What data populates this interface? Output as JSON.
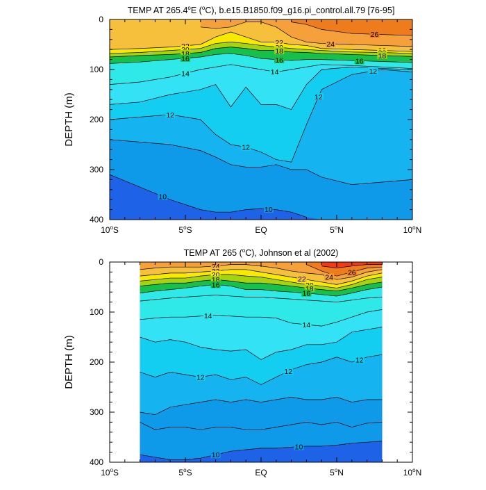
{
  "chart_data": [
    {
      "type": "contour",
      "title": "TEMP AT 265.4°E (°C), b.e15.B1850.f09_g16.pi_control.all.79 [76-95]",
      "title_parts": [
        "TEMP AT 265.4",
        "o",
        "E (",
        "o",
        "C), b.e15.B1850.f09_g16.pi_control.all.79 [76-95]"
      ],
      "ylabel": "DEPTH (m)",
      "xlim": [
        -10,
        10
      ],
      "ylim": [
        400,
        0
      ],
      "x_tick_labels": [
        "10°S",
        "5°S",
        "EQ",
        "5°N",
        "10°N"
      ],
      "y_tick_labels": [
        "0",
        "100",
        "200",
        "300",
        "400"
      ],
      "contour_levels": [
        10,
        11,
        12,
        13,
        14,
        15,
        16,
        17,
        18,
        19,
        20,
        21,
        22,
        23,
        24,
        25,
        26
      ],
      "lat": [
        -10,
        -8,
        -6,
        -4,
        -3,
        -2,
        -1,
        0,
        1,
        2,
        3,
        4,
        6,
        8,
        10
      ],
      "isotherm_depths": [
        {
          "t": 26,
          "depth": [
            null,
            null,
            null,
            null,
            null,
            null,
            null,
            null,
            null,
            5,
            10,
            20,
            28,
            30,
            32
          ]
        },
        {
          "t": 24,
          "depth": [
            null,
            null,
            null,
            15,
            18,
            15,
            5,
            5,
            15,
            35,
            45,
            48,
            50,
            52,
            54
          ]
        },
        {
          "t": 22,
          "depth": [
            60,
            58,
            55,
            50,
            35,
            25,
            35,
            45,
            45,
            50,
            52,
            58,
            60,
            62,
            64
          ]
        },
        {
          "t": 20,
          "depth": [
            68,
            66,
            62,
            58,
            48,
            45,
            48,
            52,
            55,
            58,
            60,
            62,
            65,
            66,
            68
          ]
        },
        {
          "t": 18,
          "depth": [
            75,
            72,
            70,
            66,
            58,
            55,
            58,
            62,
            62,
            65,
            66,
            68,
            70,
            72,
            74
          ]
        },
        {
          "t": 16,
          "depth": [
            88,
            85,
            80,
            75,
            70,
            68,
            72,
            78,
            80,
            82,
            80,
            80,
            82,
            84,
            86
          ]
        },
        {
          "t": 14,
          "depth": [
            130,
            125,
            115,
            100,
            95,
            90,
            95,
            100,
            105,
            100,
            95,
            90,
            92,
            95,
            98
          ]
        },
        {
          "t": 13,
          "depth": [
            170,
            165,
            150,
            140,
            130,
            175,
            135,
            170,
            170,
            180,
            130,
            100,
            95,
            98,
            100
          ]
        },
        {
          "t": 12,
          "depth": [
            200,
            195,
            190,
            200,
            230,
            250,
            255,
            265,
            280,
            285,
            210,
            140,
            110,
            100,
            105
          ]
        },
        {
          "t": 11,
          "depth": [
            240,
            245,
            250,
            262,
            275,
            290,
            295,
            295,
            290,
            300,
            300,
            315,
            330,
            325,
            320
          ]
        },
        {
          "t": 10,
          "depth": [
            310,
            335,
            360,
            380,
            385,
            385,
            380,
            378,
            380,
            385,
            395,
            400,
            400,
            400,
            400
          ]
        }
      ],
      "contour_labels": [
        "22",
        "20",
        "18",
        "16",
        "14",
        "12",
        "12",
        "12",
        "10",
        "10",
        "22",
        "20",
        "18",
        "16",
        "24",
        "26",
        "22",
        "20",
        "18",
        "16",
        "14",
        "12"
      ]
    },
    {
      "type": "contour",
      "title": "TEMP AT 265 (°C), Johnson et al (2002)",
      "title_parts": [
        "TEMP AT 265 (",
        "o",
        "C), Johnson et al (2002)"
      ],
      "ylabel": "DEPTH (m)",
      "xlim": [
        -10,
        10
      ],
      "ylim": [
        400,
        0
      ],
      "data_xrange": [
        -8,
        8
      ],
      "x_tick_labels": [
        "10°S",
        "5°S",
        "EQ",
        "5°N",
        "10°N"
      ],
      "y_tick_labels": [
        "0",
        "100",
        "200",
        "300",
        "400"
      ],
      "contour_levels": [
        10,
        11,
        12,
        13,
        14,
        15,
        16,
        17,
        18,
        19,
        20,
        21,
        22,
        23,
        24,
        25,
        26,
        27
      ],
      "lat": [
        -8,
        -7,
        -6,
        -5,
        -4,
        -3,
        -2,
        -1,
        0,
        1,
        2,
        3,
        4,
        5,
        6,
        7,
        8
      ],
      "isotherm_depths": [
        {
          "t": 27,
          "depth": [
            null,
            null,
            null,
            null,
            null,
            null,
            null,
            null,
            null,
            null,
            null,
            null,
            8,
            12,
            8,
            5,
            5
          ]
        },
        {
          "t": 26,
          "depth": [
            null,
            null,
            null,
            null,
            null,
            null,
            null,
            null,
            null,
            null,
            null,
            5,
            18,
            28,
            20,
            12,
            10
          ]
        },
        {
          "t": 24,
          "depth": [
            15,
            12,
            10,
            10,
            10,
            8,
            5,
            5,
            8,
            12,
            18,
            22,
            25,
            35,
            30,
            20,
            15
          ]
        },
        {
          "t": 22,
          "depth": [
            28,
            25,
            22,
            22,
            20,
            18,
            15,
            15,
            20,
            25,
            30,
            35,
            40,
            45,
            38,
            28,
            22
          ]
        },
        {
          "t": 20,
          "depth": [
            38,
            35,
            32,
            32,
            28,
            25,
            25,
            28,
            30,
            35,
            40,
            45,
            48,
            52,
            45,
            35,
            30
          ]
        },
        {
          "t": 18,
          "depth": [
            48,
            45,
            42,
            42,
            38,
            35,
            38,
            42,
            42,
            45,
            48,
            52,
            55,
            58,
            52,
            45,
            40
          ]
        },
        {
          "t": 16,
          "depth": [
            62,
            58,
            55,
            52,
            48,
            45,
            48,
            55,
            55,
            58,
            60,
            62,
            65,
            68,
            62,
            55,
            50
          ]
        },
        {
          "t": 15,
          "depth": [
            78,
            75,
            72,
            70,
            68,
            66,
            68,
            70,
            70,
            72,
            74,
            76,
            78,
            80,
            76,
            72,
            70
          ]
        },
        {
          "t": 14,
          "depth": [
            115,
            112,
            110,
            110,
            108,
            106,
            108,
            110,
            110,
            112,
            122,
            125,
            128,
            120,
            110,
            100,
            95
          ]
        },
        {
          "t": 13,
          "depth": [
            150,
            160,
            155,
            160,
            170,
            175,
            178,
            175,
            195,
            180,
            175,
            165,
            165,
            160,
            140,
            135,
            130
          ]
        },
        {
          "t": 12,
          "depth": [
            220,
            230,
            220,
            225,
            230,
            225,
            235,
            230,
            245,
            230,
            215,
            205,
            200,
            190,
            200,
            190,
            185
          ]
        },
        {
          "t": 11,
          "depth": [
            300,
            305,
            290,
            285,
            280,
            275,
            280,
            275,
            280,
            275,
            270,
            275,
            275,
            270,
            280,
            275,
            275
          ]
        },
        {
          "t": 10.5,
          "depth": [
            320,
            335,
            330,
            330,
            335,
            330,
            330,
            335,
            335,
            330,
            325,
            320,
            325,
            320,
            330,
            322,
            320
          ]
        },
        {
          "t": 10,
          "depth": [
            385,
            390,
            395,
            395,
            392,
            385,
            378,
            375,
            372,
            372,
            370,
            368,
            368,
            366,
            362,
            360,
            358
          ]
        }
      ],
      "contour_labels": [
        "24",
        "22",
        "20",
        "18",
        "16",
        "14",
        "14",
        "12",
        "12",
        "12",
        "10",
        "10",
        "22",
        "20",
        "18",
        "16",
        "24",
        "26"
      ]
    }
  ]
}
